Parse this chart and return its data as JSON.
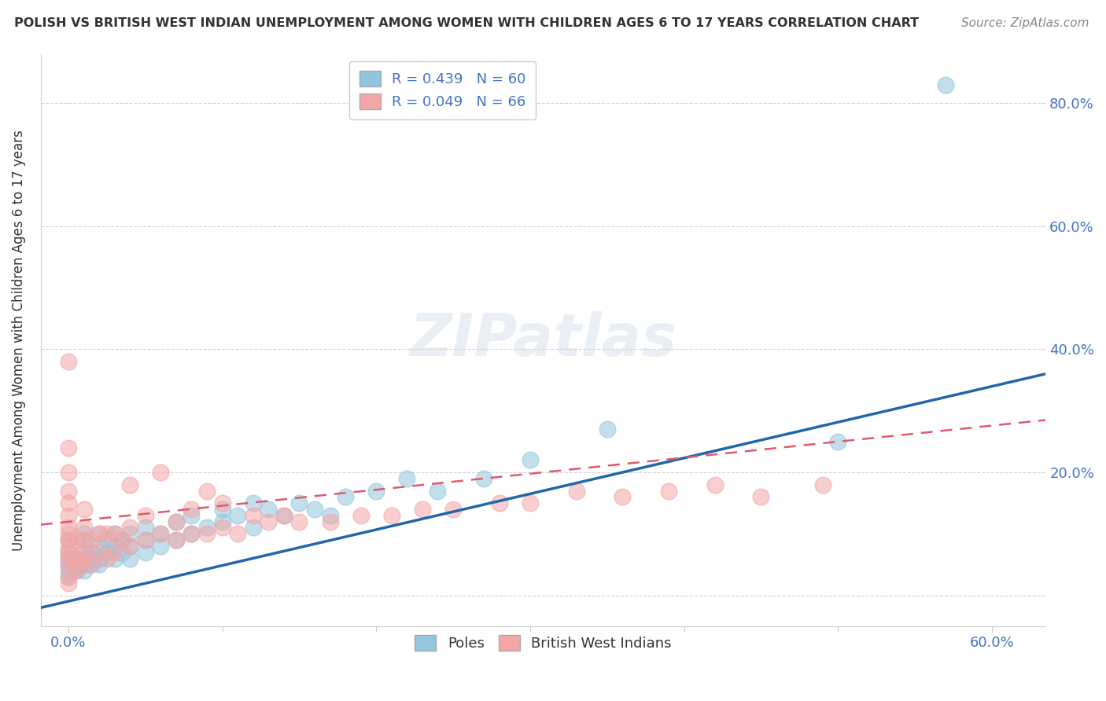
{
  "title": "POLISH VS BRITISH WEST INDIAN UNEMPLOYMENT AMONG WOMEN WITH CHILDREN AGES 6 TO 17 YEARS CORRELATION CHART",
  "source": "Source: ZipAtlas.com",
  "ylabel": "Unemployment Among Women with Children Ages 6 to 17 years",
  "xlim": [
    -0.018,
    0.635
  ],
  "ylim": [
    -0.05,
    0.88
  ],
  "poles_R": 0.439,
  "poles_N": 60,
  "bwi_R": 0.049,
  "bwi_N": 66,
  "poles_color": "#92c5de",
  "bwi_color": "#f4a6a6",
  "poles_line_color": "#2166ac",
  "bwi_line_color": "#e05a6a",
  "watermark": "ZIPatlas",
  "background_color": "#ffffff",
  "grid_color": "#d0d0d0",
  "poles_x": [
    0.0,
    0.0,
    0.0,
    0.0,
    0.0,
    0.0,
    0.005,
    0.005,
    0.008,
    0.01,
    0.01,
    0.01,
    0.01,
    0.01,
    0.012,
    0.015,
    0.015,
    0.02,
    0.02,
    0.02,
    0.02,
    0.025,
    0.025,
    0.03,
    0.03,
    0.03,
    0.035,
    0.035,
    0.04,
    0.04,
    0.04,
    0.05,
    0.05,
    0.05,
    0.06,
    0.06,
    0.07,
    0.07,
    0.08,
    0.08,
    0.09,
    0.1,
    0.1,
    0.11,
    0.12,
    0.12,
    0.13,
    0.14,
    0.15,
    0.16,
    0.17,
    0.18,
    0.2,
    0.22,
    0.24,
    0.27,
    0.3,
    0.35,
    0.5,
    0.57
  ],
  "poles_y": [
    0.03,
    0.04,
    0.05,
    0.06,
    0.07,
    0.09,
    0.04,
    0.06,
    0.05,
    0.04,
    0.05,
    0.07,
    0.09,
    0.1,
    0.06,
    0.05,
    0.07,
    0.05,
    0.06,
    0.08,
    0.1,
    0.07,
    0.09,
    0.06,
    0.08,
    0.1,
    0.07,
    0.09,
    0.06,
    0.08,
    0.1,
    0.07,
    0.09,
    0.11,
    0.08,
    0.1,
    0.09,
    0.12,
    0.1,
    0.13,
    0.11,
    0.12,
    0.14,
    0.13,
    0.11,
    0.15,
    0.14,
    0.13,
    0.15,
    0.14,
    0.13,
    0.16,
    0.17,
    0.19,
    0.17,
    0.19,
    0.22,
    0.27,
    0.25,
    0.83
  ],
  "bwi_x": [
    0.0,
    0.0,
    0.0,
    0.0,
    0.0,
    0.0,
    0.0,
    0.0,
    0.0,
    0.0,
    0.0,
    0.0,
    0.0,
    0.0,
    0.0,
    0.005,
    0.005,
    0.005,
    0.008,
    0.01,
    0.01,
    0.01,
    0.01,
    0.01,
    0.015,
    0.015,
    0.02,
    0.02,
    0.025,
    0.025,
    0.03,
    0.03,
    0.035,
    0.04,
    0.04,
    0.04,
    0.05,
    0.05,
    0.06,
    0.06,
    0.07,
    0.07,
    0.08,
    0.08,
    0.09,
    0.09,
    0.1,
    0.1,
    0.11,
    0.12,
    0.13,
    0.14,
    0.15,
    0.17,
    0.19,
    0.21,
    0.23,
    0.25,
    0.28,
    0.3,
    0.33,
    0.36,
    0.39,
    0.42,
    0.45,
    0.49
  ],
  "bwi_y": [
    0.02,
    0.03,
    0.05,
    0.06,
    0.07,
    0.08,
    0.09,
    0.1,
    0.11,
    0.13,
    0.15,
    0.17,
    0.2,
    0.24,
    0.38,
    0.04,
    0.06,
    0.09,
    0.05,
    0.06,
    0.07,
    0.09,
    0.11,
    0.14,
    0.05,
    0.09,
    0.07,
    0.1,
    0.06,
    0.1,
    0.07,
    0.1,
    0.09,
    0.08,
    0.11,
    0.18,
    0.09,
    0.13,
    0.1,
    0.2,
    0.09,
    0.12,
    0.1,
    0.14,
    0.1,
    0.17,
    0.11,
    0.15,
    0.1,
    0.13,
    0.12,
    0.13,
    0.12,
    0.12,
    0.13,
    0.13,
    0.14,
    0.14,
    0.15,
    0.15,
    0.17,
    0.16,
    0.17,
    0.18,
    0.16,
    0.18
  ],
  "poles_line_x0": -0.018,
  "poles_line_x1": 0.635,
  "poles_line_y0": -0.02,
  "poles_line_y1": 0.36,
  "bwi_line_x0": -0.018,
  "bwi_line_x1": 0.635,
  "bwi_line_y0": 0.115,
  "bwi_line_y1": 0.285
}
